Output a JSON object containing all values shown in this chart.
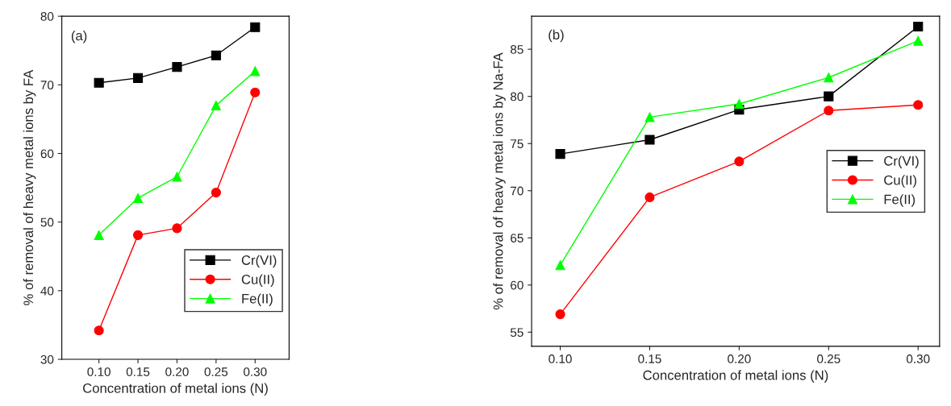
{
  "chart_data": [
    {
      "type": "line",
      "annotations": [
        "(a)"
      ],
      "xlabel": "Concentration of metal ions (N)",
      "ylabel": "% of removal of heavy metal ions by FA",
      "x": [
        0.1,
        0.15,
        0.2,
        0.25,
        0.3
      ],
      "xlim": [
        0.0525,
        0.3435
      ],
      "xticks": [
        {
          "value": 0.1,
          "label": "0.10"
        },
        {
          "value": 0.15,
          "label": "0.15"
        },
        {
          "value": 0.2,
          "label": "0.20"
        },
        {
          "value": 0.25,
          "label": "0.25"
        },
        {
          "value": 0.3,
          "label": "0.30"
        }
      ],
      "ylim": [
        30,
        80
      ],
      "yticks": [
        30,
        40,
        50,
        60,
        70,
        80
      ],
      "legend": "lower right",
      "grid": false,
      "series": [
        {
          "name": "Cr(VI)",
          "color": "#000000",
          "marker": "square",
          "values": [
            70.3,
            71.0,
            72.6,
            74.3,
            78.4
          ]
        },
        {
          "name": "Cu(II)",
          "color": "#ff0000",
          "marker": "circle",
          "values": [
            34.2,
            48.1,
            49.1,
            54.3,
            68.9
          ]
        },
        {
          "name": "Fe(II)",
          "color": "#00ff00",
          "marker": "triangle",
          "values": [
            48.1,
            53.5,
            56.6,
            67.0,
            72.0
          ]
        }
      ]
    },
    {
      "type": "line",
      "annotations": [
        "(b)"
      ],
      "xlabel": "Concentration of metal ions (N)",
      "ylabel": "% of removal of heavy metal ions by Na-FA",
      "x": [
        0.1,
        0.15,
        0.2,
        0.25,
        0.3
      ],
      "xlim": [
        0.084,
        0.312
      ],
      "xticks": [
        {
          "value": 0.1,
          "label": "0.10"
        },
        {
          "value": 0.15,
          "label": "0.15"
        },
        {
          "value": 0.2,
          "label": "0.20"
        },
        {
          "value": 0.25,
          "label": "0.25"
        },
        {
          "value": 0.3,
          "label": "0.30"
        }
      ],
      "ylim": [
        53.5,
        88.5
      ],
      "yticks": [
        55,
        60,
        65,
        70,
        75,
        80,
        85
      ],
      "legend": "right",
      "grid": false,
      "series": [
        {
          "name": "Cr(VI)",
          "color": "#000000",
          "marker": "square",
          "values": [
            73.9,
            75.4,
            78.6,
            80.0,
            87.4
          ]
        },
        {
          "name": "Cu(II)",
          "color": "#ff0000",
          "marker": "circle",
          "values": [
            56.9,
            69.3,
            73.1,
            78.5,
            79.1
          ]
        },
        {
          "name": "Fe(II)",
          "color": "#00ff00",
          "marker": "triangle",
          "values": [
            62.1,
            77.8,
            79.2,
            82.0,
            85.9
          ]
        }
      ]
    }
  ]
}
